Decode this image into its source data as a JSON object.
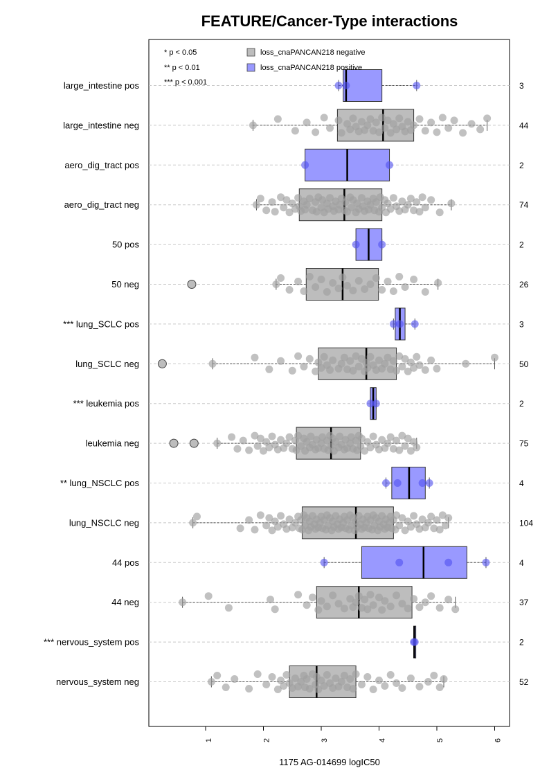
{
  "chart_data": {
    "type": "boxplot",
    "title": "FEATURE/Cancer-Type interactions",
    "xlabel": "1175 AG-014699 logIC50",
    "xlim": [
      0,
      6.25
    ],
    "x_ticks": [
      "1",
      "2",
      "3",
      "4",
      "5",
      "6"
    ],
    "grid": "horizontal dashed",
    "legend": {
      "placement": "top-left",
      "significance": [
        "* p < 0.05",
        "** p < 0.01",
        "*** p < 0.001"
      ],
      "series": [
        {
          "label": "loss_cnaPANCAN218 negative",
          "color": "#bdbdbd"
        },
        {
          "label": "loss_cnaPANCAN218 positive",
          "color": "#9999ff"
        }
      ]
    },
    "groups": [
      {
        "label": "large_intestine pos",
        "n": "3",
        "type": "pos",
        "q1": 3.38,
        "median": 3.43,
        "q3": 4.05,
        "wlo": 3.3,
        "whi": 4.65,
        "outliers": [],
        "points": [
          3.3,
          3.43,
          4.65
        ]
      },
      {
        "label": "large_intestine neg",
        "n": "44",
        "type": "neg",
        "q1": 3.28,
        "median": 4.07,
        "q3": 4.6,
        "wlo": 1.82,
        "whi": 5.87,
        "outliers": [],
        "points": [
          1.82,
          2.25,
          2.55,
          2.75,
          2.9,
          3.05,
          3.15,
          3.3,
          3.35,
          3.45,
          3.5,
          3.55,
          3.6,
          3.65,
          3.7,
          3.75,
          3.8,
          3.85,
          3.9,
          3.95,
          4.0,
          4.05,
          4.1,
          4.15,
          4.2,
          4.25,
          4.3,
          4.35,
          4.4,
          4.45,
          4.5,
          4.55,
          4.6,
          4.7,
          4.8,
          4.9,
          5.0,
          5.1,
          5.2,
          5.3,
          5.45,
          5.6,
          5.75,
          5.87
        ]
      },
      {
        "label": "aero_dig_tract pos",
        "n": "2",
        "type": "pos",
        "q1": 2.72,
        "median": 3.45,
        "q3": 4.18,
        "wlo": 2.72,
        "whi": 4.18,
        "outliers": [],
        "points": [
          2.72,
          4.18
        ]
      },
      {
        "label": "aero_dig_tract neg",
        "n": "74",
        "type": "neg",
        "q1": 2.62,
        "median": 3.4,
        "q3": 4.05,
        "wlo": 1.88,
        "whi": 5.25,
        "outliers": [],
        "points": [
          1.88,
          1.95,
          2.05,
          2.15,
          2.2,
          2.3,
          2.35,
          2.4,
          2.45,
          2.5,
          2.55,
          2.6,
          2.62,
          2.65,
          2.7,
          2.72,
          2.75,
          2.8,
          2.85,
          2.9,
          2.92,
          2.95,
          3.0,
          3.02,
          3.05,
          3.1,
          3.12,
          3.15,
          3.2,
          3.22,
          3.25,
          3.3,
          3.32,
          3.35,
          3.4,
          3.42,
          3.45,
          3.5,
          3.52,
          3.55,
          3.6,
          3.62,
          3.65,
          3.7,
          3.72,
          3.75,
          3.8,
          3.82,
          3.85,
          3.9,
          3.92,
          3.95,
          4.0,
          4.02,
          4.05,
          4.1,
          4.12,
          4.15,
          4.2,
          4.25,
          4.3,
          4.35,
          4.4,
          4.45,
          4.5,
          4.55,
          4.6,
          4.65,
          4.7,
          4.75,
          4.8,
          4.9,
          5.05,
          5.25
        ]
      },
      {
        "label": "50 pos",
        "n": "2",
        "type": "pos",
        "q1": 3.6,
        "median": 3.82,
        "q3": 4.05,
        "wlo": 3.6,
        "whi": 4.05,
        "outliers": [],
        "points": [
          3.6,
          4.05
        ]
      },
      {
        "label": "50 neg",
        "n": "26",
        "type": "neg",
        "q1": 2.74,
        "median": 3.37,
        "q3": 3.99,
        "wlo": 2.22,
        "whi": 5.02,
        "outliers": [
          0.76
        ],
        "points": [
          2.22,
          2.3,
          2.45,
          2.6,
          2.7,
          2.8,
          2.9,
          3.0,
          3.1,
          3.2,
          3.3,
          3.37,
          3.45,
          3.55,
          3.65,
          3.75,
          3.85,
          3.95,
          4.05,
          4.15,
          4.25,
          4.35,
          4.45,
          4.6,
          4.8,
          5.02
        ]
      },
      {
        "label": "*** lung_SCLC pos",
        "n": "3",
        "type": "pos",
        "q1": 4.28,
        "median": 4.36,
        "q3": 4.45,
        "wlo": 4.25,
        "whi": 4.62,
        "outliers": [],
        "points": [
          4.25,
          4.36,
          4.62
        ]
      },
      {
        "label": "lung_SCLC neg",
        "n": "50",
        "type": "neg",
        "q1": 2.95,
        "median": 3.78,
        "q3": 4.3,
        "wlo": 1.12,
        "whi": 6.0,
        "outliers": [
          0.25
        ],
        "points": [
          1.12,
          1.85,
          2.1,
          2.3,
          2.5,
          2.6,
          2.7,
          2.8,
          2.9,
          2.95,
          3.0,
          3.05,
          3.1,
          3.15,
          3.2,
          3.3,
          3.35,
          3.4,
          3.45,
          3.5,
          3.55,
          3.6,
          3.65,
          3.7,
          3.75,
          3.78,
          3.8,
          3.85,
          3.9,
          3.95,
          4.0,
          4.05,
          4.1,
          4.15,
          4.2,
          4.25,
          4.3,
          4.35,
          4.4,
          4.45,
          4.5,
          4.55,
          4.6,
          4.65,
          4.7,
          4.8,
          4.9,
          5.0,
          5.5,
          6.0
        ]
      },
      {
        "label": "*** leukemia pos",
        "n": "2",
        "type": "pos",
        "q1": 3.85,
        "median": 3.9,
        "q3": 3.95,
        "wlo": 3.85,
        "whi": 3.95,
        "outliers": [],
        "points": [
          3.85,
          3.95
        ]
      },
      {
        "label": "leukemia neg",
        "n": "75",
        "type": "neg",
        "q1": 2.57,
        "median": 3.17,
        "q3": 3.68,
        "wlo": 1.2,
        "whi": 4.65,
        "outliers": [
          0.45,
          0.8
        ],
        "points": [
          1.2,
          1.45,
          1.55,
          1.65,
          1.75,
          1.85,
          1.9,
          1.95,
          2.0,
          2.05,
          2.1,
          2.15,
          2.2,
          2.25,
          2.3,
          2.35,
          2.4,
          2.45,
          2.5,
          2.55,
          2.57,
          2.6,
          2.65,
          2.7,
          2.72,
          2.75,
          2.8,
          2.82,
          2.85,
          2.9,
          2.92,
          2.95,
          3.0,
          3.02,
          3.05,
          3.1,
          3.12,
          3.15,
          3.17,
          3.2,
          3.22,
          3.25,
          3.3,
          3.32,
          3.35,
          3.4,
          3.42,
          3.45,
          3.5,
          3.52,
          3.55,
          3.6,
          3.62,
          3.65,
          3.68,
          3.7,
          3.75,
          3.8,
          3.85,
          3.9,
          3.95,
          4.0,
          4.05,
          4.1,
          4.15,
          4.2,
          4.25,
          4.3,
          4.35,
          4.4,
          4.45,
          4.5,
          4.55,
          4.6,
          4.65
        ]
      },
      {
        "label": "** lung_NSCLC pos",
        "n": "4",
        "type": "pos",
        "q1": 4.22,
        "median": 4.52,
        "q3": 4.8,
        "wlo": 4.12,
        "whi": 4.87,
        "outliers": [],
        "points": [
          4.12,
          4.32,
          4.75,
          4.87
        ]
      },
      {
        "label": "lung_NSCLC neg",
        "n": "104",
        "type": "neg",
        "q1": 2.67,
        "median": 3.6,
        "q3": 4.25,
        "wlo": 0.78,
        "whi": 5.2,
        "outliers": [],
        "points": [
          0.78,
          0.85,
          1.6,
          1.75,
          1.85,
          1.95,
          2.05,
          2.1,
          2.15,
          2.2,
          2.25,
          2.3,
          2.35,
          2.4,
          2.45,
          2.5,
          2.55,
          2.6,
          2.62,
          2.65,
          2.67,
          2.7,
          2.72,
          2.75,
          2.78,
          2.8,
          2.82,
          2.85,
          2.88,
          2.9,
          2.92,
          2.95,
          2.98,
          3.0,
          3.02,
          3.05,
          3.08,
          3.1,
          3.12,
          3.15,
          3.18,
          3.2,
          3.22,
          3.25,
          3.28,
          3.3,
          3.32,
          3.35,
          3.38,
          3.4,
          3.42,
          3.45,
          3.48,
          3.5,
          3.52,
          3.55,
          3.58,
          3.6,
          3.62,
          3.65,
          3.68,
          3.7,
          3.72,
          3.75,
          3.78,
          3.8,
          3.82,
          3.85,
          3.88,
          3.9,
          3.92,
          3.95,
          3.98,
          4.0,
          4.02,
          4.05,
          4.08,
          4.1,
          4.12,
          4.15,
          4.18,
          4.2,
          4.22,
          4.25,
          4.28,
          4.3,
          4.35,
          4.4,
          4.45,
          4.5,
          4.55,
          4.6,
          4.65,
          4.7,
          4.75,
          4.8,
          4.85,
          4.9,
          4.95,
          5.0,
          5.05,
          5.1,
          5.15,
          5.2
        ]
      },
      {
        "label": "44 pos",
        "n": "4",
        "type": "pos",
        "q1": 3.7,
        "median": 4.77,
        "q3": 5.52,
        "wlo": 3.05,
        "whi": 5.85,
        "outliers": [],
        "points": [
          3.05,
          4.35,
          5.2,
          5.85
        ]
      },
      {
        "label": "44 neg",
        "n": "37",
        "type": "neg",
        "q1": 2.92,
        "median": 3.65,
        "q3": 4.57,
        "wlo": 0.6,
        "whi": 5.32,
        "outliers": [],
        "points": [
          0.6,
          1.05,
          1.4,
          2.12,
          2.2,
          2.6,
          2.75,
          2.85,
          2.95,
          3.0,
          3.1,
          3.2,
          3.3,
          3.4,
          3.5,
          3.55,
          3.6,
          3.65,
          3.7,
          3.75,
          3.8,
          3.85,
          3.9,
          4.0,
          4.05,
          4.1,
          4.2,
          4.3,
          4.4,
          4.5,
          4.6,
          4.7,
          4.8,
          4.9,
          5.05,
          5.2,
          5.32
        ]
      },
      {
        "label": "*** nervous_system pos",
        "n": "2",
        "type": "pos",
        "q1": 4.6,
        "median": 4.61,
        "q3": 4.62,
        "wlo": 4.6,
        "whi": 4.62,
        "outliers": [],
        "points": [
          4.6,
          4.62
        ]
      },
      {
        "label": "nervous_system neg",
        "n": "52",
        "type": "neg",
        "q1": 2.45,
        "median": 2.92,
        "q3": 3.6,
        "wlo": 1.1,
        "whi": 5.12,
        "outliers": [],
        "points": [
          1.1,
          1.2,
          1.35,
          1.5,
          1.75,
          1.9,
          2.05,
          2.15,
          2.25,
          2.3,
          2.35,
          2.4,
          2.45,
          2.5,
          2.55,
          2.6,
          2.65,
          2.7,
          2.72,
          2.75,
          2.8,
          2.85,
          2.9,
          2.92,
          2.95,
          3.0,
          3.05,
          3.1,
          3.15,
          3.2,
          3.25,
          3.3,
          3.35,
          3.4,
          3.45,
          3.5,
          3.55,
          3.6,
          3.7,
          3.8,
          3.9,
          4.0,
          4.1,
          4.2,
          4.3,
          4.4,
          4.55,
          4.7,
          4.85,
          4.95,
          5.05,
          5.12
        ]
      }
    ]
  }
}
